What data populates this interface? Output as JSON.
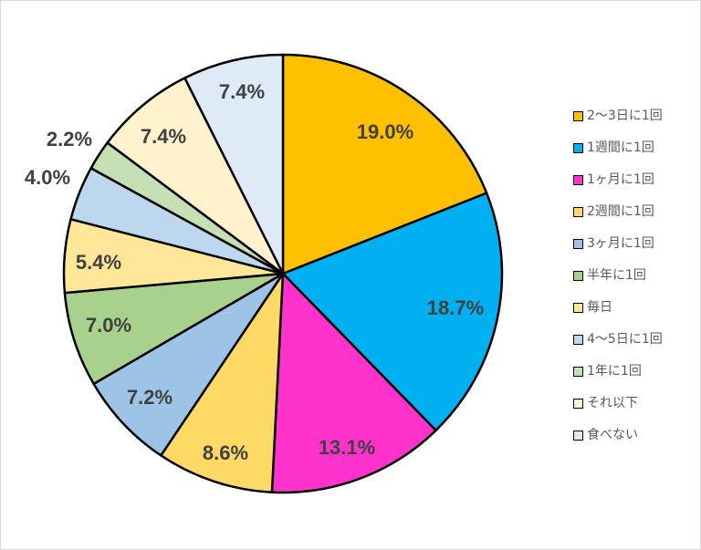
{
  "chart_data": {
    "type": "pie",
    "title": "",
    "slices": [
      {
        "label": "2〜3日に1回",
        "value": 19.0,
        "display": "19.0%",
        "color": "#FFC000"
      },
      {
        "label": "1週間に1回",
        "value": 18.7,
        "display": "18.7%",
        "color": "#00B0F0"
      },
      {
        "label": "1ヶ月に1回",
        "value": 13.1,
        "display": "13.1%",
        "color": "#FF33CC"
      },
      {
        "label": "2週間に1回",
        "value": 8.6,
        "display": "8.6%",
        "color": "#FFD966"
      },
      {
        "label": "3ヶ月に1回",
        "value": 7.2,
        "display": "7.2%",
        "color": "#9DC3E6"
      },
      {
        "label": "半年に1回",
        "value": 7.0,
        "display": "7.0%",
        "color": "#A9D18E"
      },
      {
        "label": "毎日",
        "value": 5.4,
        "display": "5.4%",
        "color": "#FFE699"
      },
      {
        "label": "4〜5日に1回",
        "value": 4.0,
        "display": "4.0%",
        "color": "#BDD7EE"
      },
      {
        "label": "1年に1回",
        "value": 2.2,
        "display": "2.2%",
        "color": "#C5E0B4"
      },
      {
        "label": "それ以下",
        "value": 7.4,
        "display": "7.4%",
        "color": "#FFF2CC"
      },
      {
        "label": "食べない",
        "value": 7.4,
        "display": "7.4%",
        "color": "#DEEBF7"
      }
    ],
    "legend_position": "right",
    "start": "top",
    "direction": "clockwise"
  }
}
